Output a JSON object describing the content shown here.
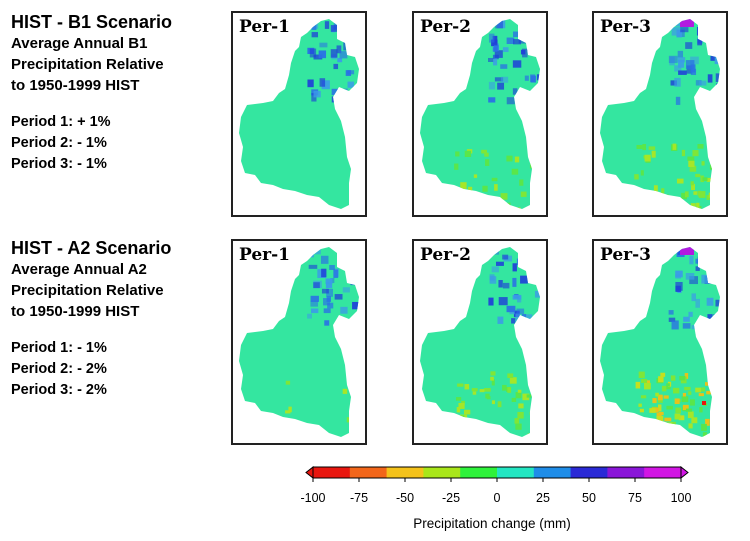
{
  "scenarios": [
    {
      "title": "HIST - B1 Scenario",
      "subtitle": [
        "Average Annual B1",
        "Precipitation Relative",
        "to 1950-1999 HIST"
      ],
      "periods": [
        "Period 1: + 1%",
        "Period 2: - 1%",
        "Period 3: - 1%"
      ],
      "panels": [
        {
          "label": "Per-1",
          "change_percent": 1
        },
        {
          "label": "Per-2",
          "change_percent": -1
        },
        {
          "label": "Per-3",
          "change_percent": -1
        }
      ]
    },
    {
      "title": "HIST - A2 Scenario",
      "subtitle": [
        "Average Annual A2",
        "Precipitation Relative",
        "to 1950-1999 HIST"
      ],
      "periods": [
        "Period 1: - 1%",
        "Period 2: - 2%",
        "Period 3: - 2%"
      ],
      "panels": [
        {
          "label": "Per-1",
          "change_percent": -1
        },
        {
          "label": "Per-2",
          "change_percent": -2
        },
        {
          "label": "Per-3",
          "change_percent": -2
        }
      ]
    }
  ],
  "legend": {
    "title": "Precipitation change (mm)",
    "ticks": [
      "-100",
      "-75",
      "-50",
      "-25",
      "0",
      "25",
      "50",
      "75",
      "100"
    ],
    "colors": [
      "#e8170f",
      "#f2661a",
      "#f4c21b",
      "#a9e61a",
      "#2ff23b",
      "#23e6c2",
      "#1f8de8",
      "#2a2ad6",
      "#8a16d8",
      "#d216e4"
    ],
    "range": [
      -100,
      100
    ]
  }
}
